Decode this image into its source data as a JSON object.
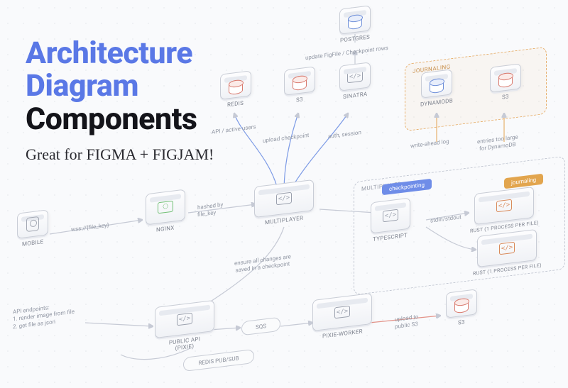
{
  "colors": {
    "headline_blue": "#5a78e6",
    "zone_orange_border": "#e7b06e",
    "zone_orange_text": "#c88f4a",
    "pill_blue": "#6f8de8",
    "pill_amber": "#e2a54e"
  },
  "headline": {
    "line1": "Architecture",
    "line2": "Diagram",
    "line3": "Components",
    "tagline": "Great for FIGMA + FIGJAM!"
  },
  "nodes": {
    "postgres": {
      "label": "POSTGRES"
    },
    "redis": {
      "label": "REDIS"
    },
    "s3_top": {
      "label": "S3"
    },
    "sinatra": {
      "label": "SINATRA"
    },
    "dynamodb": {
      "label": "DYNAMODB"
    },
    "s3_journal": {
      "label": "S3"
    },
    "nginx": {
      "label": "NGINX"
    },
    "multiplayer": {
      "label": "MULTIPLAYER"
    },
    "mobile": {
      "label": "MOBILE"
    },
    "typescript": {
      "label": "TYPESCRIPT"
    },
    "rust1": {
      "label": "RUST (1 PROCESS PER FILE)"
    },
    "rust2": {
      "label": "RUST (1 PROCESS PER FILE)"
    },
    "public_api": {
      "label": "PUBLIC API (PIXIE)"
    },
    "pixie_worker": {
      "label": "PIXIE-WORKER"
    },
    "s3_bottom": {
      "label": "S3"
    }
  },
  "zones": {
    "journaling": {
      "label": "JOURNALING"
    },
    "multiplayer": {
      "label": "MULTIPLAYER"
    }
  },
  "pills": {
    "checkpointing": "checkpointing",
    "journaling": "journaling"
  },
  "capsules": {
    "sqs": "SQS",
    "redis_pubsub": "REDIS PUB/SUB"
  },
  "annotations": {
    "update_rows": "update FigFile / Checkpoint rows",
    "api_active": "API / active users",
    "upload_checkpoint": "upload checkpoint",
    "auth_session": "auth, session",
    "write_ahead": "write-ahead log",
    "entries_too_large": "entries too large\nfor DynamoDB",
    "hashed_by": "hashed by\nfile_key",
    "wss_file_key": "wss://{file_key}",
    "stdin_stdout": "stdin/stdout",
    "ensure_changes": "ensure all changes are\nsaved in a checkpoint",
    "api_endpoints": "API endpoints:\n1. render image from file\n2. get file as json",
    "upload_public": "upload to\npublic S3"
  }
}
